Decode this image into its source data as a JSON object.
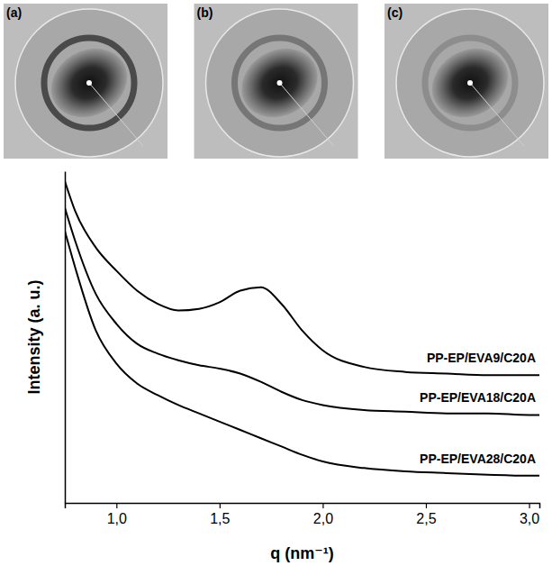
{
  "images": [
    {
      "label": "(a)"
    },
    {
      "label": "(b)"
    },
    {
      "label": "(c)"
    }
  ],
  "chart_data": {
    "type": "line",
    "x_label": "q (nm⁻¹)",
    "y_label": "Intensity (a. u.)",
    "x": [
      0.75,
      0.8,
      0.9,
      1.0,
      1.1,
      1.2,
      1.3,
      1.4,
      1.5,
      1.6,
      1.7,
      1.8,
      1.9,
      2.0,
      2.2,
      2.4,
      2.6,
      2.8,
      3.0,
      3.05
    ],
    "series": [
      {
        "name": "PP-EP/EVA9/C20A",
        "color": "#000000",
        "values": [
          97,
          88,
          77,
          70,
          64,
          60,
          58,
          58.5,
          60.5,
          64,
          65,
          60,
          52,
          46,
          41,
          39.5,
          39,
          38.5,
          38.5,
          38.5
        ]
      },
      {
        "name": "PP-EP/EVA18/C20A",
        "color": "#000000",
        "values": [
          89,
          79,
          63,
          54,
          48,
          45,
          43,
          41.5,
          40.5,
          39,
          36.5,
          33.5,
          31,
          29.5,
          28,
          27.5,
          27,
          27,
          26.5,
          26.5
        ]
      },
      {
        "name": "PP-EP/EVA28/C20A",
        "color": "#000000",
        "values": [
          82,
          71,
          52,
          42,
          36,
          32.5,
          29.5,
          27,
          24.5,
          22,
          19.5,
          17,
          14.5,
          12.5,
          10.5,
          9.5,
          9,
          8.5,
          8.2,
          8.2
        ]
      }
    ],
    "xlim": [
      0.75,
      3.05
    ],
    "xticks": [
      {
        "value": 1.0,
        "label": "1,0"
      },
      {
        "value": 1.5,
        "label": "1,5"
      },
      {
        "value": 2.0,
        "label": "2,0"
      },
      {
        "value": 2.5,
        "label": "2,5"
      },
      {
        "value": 3.0,
        "label": "3,0"
      }
    ],
    "ylim": [
      0,
      100
    ],
    "yticks": [],
    "tick_labels": "x",
    "grid": false,
    "legend": false
  }
}
